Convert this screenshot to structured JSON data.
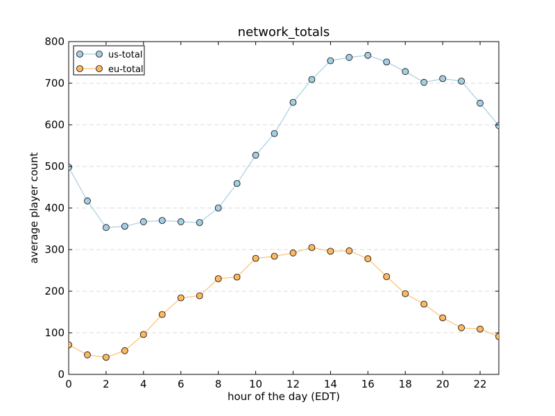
{
  "chart_data": {
    "type": "line",
    "title": "network_totals",
    "xlabel": "hour of the day (EDT)",
    "ylabel": "average player count",
    "xlim": [
      0,
      23
    ],
    "ylim": [
      0,
      800
    ],
    "x_ticks": [
      0,
      2,
      4,
      6,
      8,
      10,
      12,
      14,
      16,
      18,
      20,
      22
    ],
    "y_ticks": [
      0,
      100,
      200,
      300,
      400,
      500,
      600,
      700,
      800
    ],
    "grid": "horizontal dashed",
    "legend_position": "top-left",
    "x": [
      0,
      1,
      2,
      3,
      4,
      5,
      6,
      7,
      8,
      9,
      10,
      11,
      12,
      13,
      14,
      15,
      16,
      17,
      18,
      19,
      20,
      21,
      22,
      23
    ],
    "series": [
      {
        "name": "us-total",
        "line_color": "#a6cee3",
        "marker_color": "#a6cee3",
        "values": [
          498,
          417,
          353,
          356,
          367,
          370,
          367,
          365,
          400,
          459,
          527,
          579,
          654,
          709,
          754,
          762,
          767,
          751,
          728,
          702,
          711,
          705,
          652,
          598
        ]
      },
      {
        "name": "eu-total",
        "line_color": "#fdbf6f",
        "marker_color": "#fdb863",
        "values": [
          71,
          47,
          41,
          57,
          96,
          144,
          184,
          189,
          230,
          234,
          279,
          284,
          292,
          305,
          296,
          297,
          278,
          235,
          194,
          169,
          136,
          112,
          109,
          91
        ]
      }
    ]
  }
}
